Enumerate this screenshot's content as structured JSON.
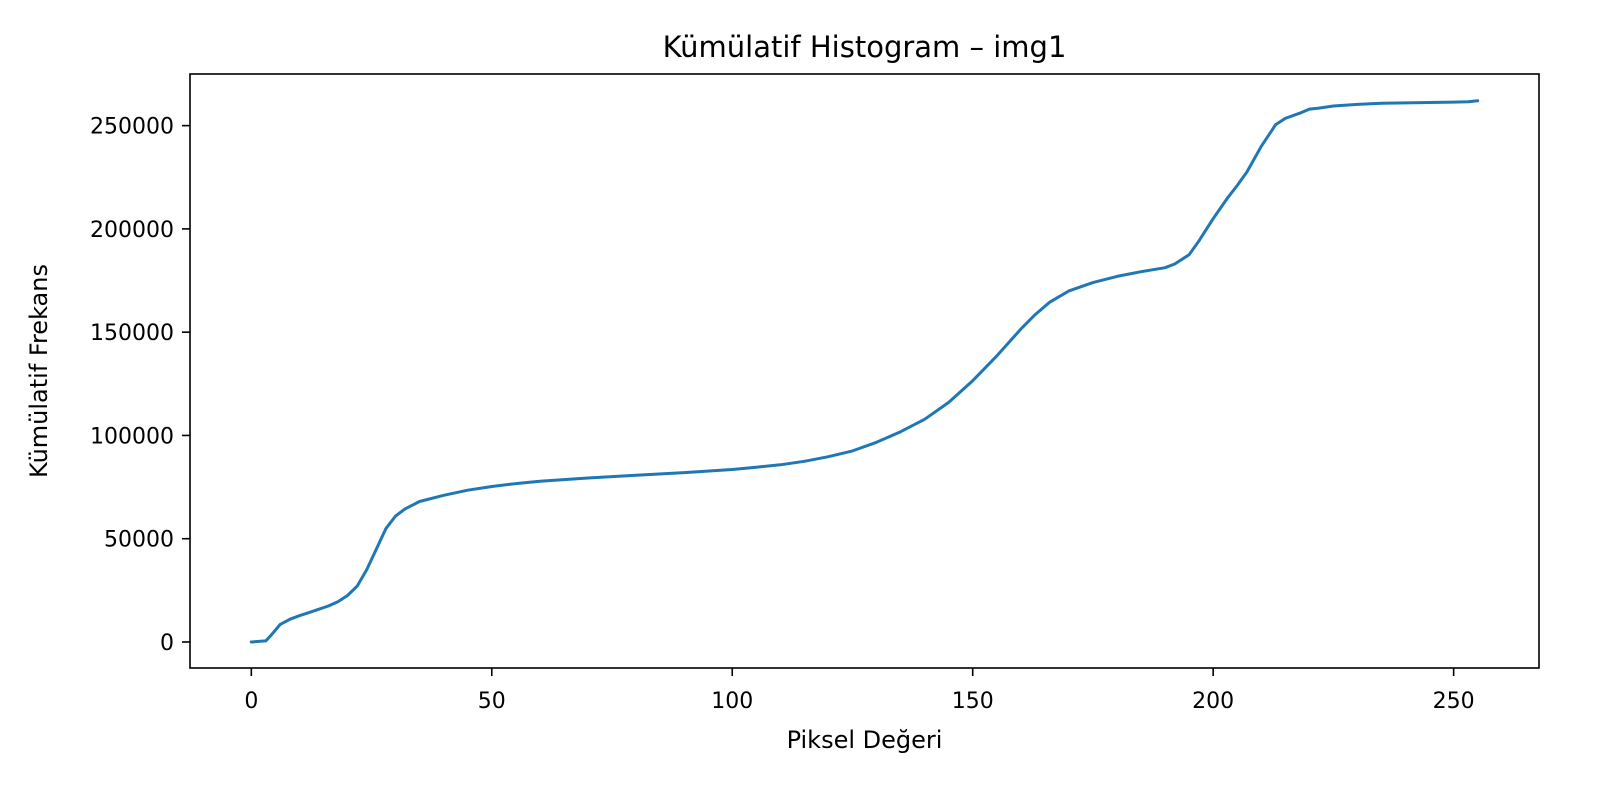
{
  "chart_data": {
    "type": "line",
    "title": "Kümülatif Histogram – img1",
    "xlabel": "Piksel Değeri",
    "ylabel": "Kümülatif Frekans",
    "xlim": [
      -12.75,
      267.75
    ],
    "ylim": [
      -12600,
      275000
    ],
    "xticks": [
      0,
      50,
      100,
      150,
      200,
      250
    ],
    "yticks": [
      0,
      50000,
      100000,
      150000,
      200000,
      250000
    ],
    "grid": false,
    "line_color": "#1f77b4",
    "series": [
      {
        "x": [
          0,
          3,
          4,
          6,
          8,
          10,
          12,
          14,
          16,
          18,
          20,
          22,
          24,
          26,
          28,
          30,
          32,
          35,
          40,
          45,
          50,
          55,
          60,
          70,
          80,
          90,
          100,
          105,
          110,
          115,
          120,
          125,
          130,
          135,
          140,
          145,
          150,
          155,
          160,
          163,
          166,
          170,
          175,
          180,
          185,
          190,
          192,
          195,
          197,
          200,
          203,
          205,
          207,
          210,
          213,
          215,
          218,
          220,
          222,
          225,
          230,
          235,
          240,
          245,
          250,
          253,
          255
        ],
        "y": [
          0,
          500,
          3000,
          8500,
          11000,
          12700,
          14200,
          15800,
          17400,
          19500,
          22500,
          27000,
          35000,
          45000,
          55000,
          61000,
          64500,
          68000,
          71000,
          73500,
          75300,
          76700,
          77800,
          79400,
          80700,
          82000,
          83500,
          84600,
          85800,
          87500,
          89700,
          92500,
          96700,
          101800,
          107800,
          116000,
          126500,
          138500,
          151500,
          158500,
          164500,
          170000,
          174000,
          177000,
          179300,
          181200,
          183000,
          187500,
          194000,
          205000,
          215000,
          221000,
          227500,
          240000,
          250500,
          253500,
          256000,
          258000,
          258500,
          259500,
          260300,
          260800,
          261000,
          261200,
          261400,
          261600,
          262000
        ]
      }
    ]
  }
}
